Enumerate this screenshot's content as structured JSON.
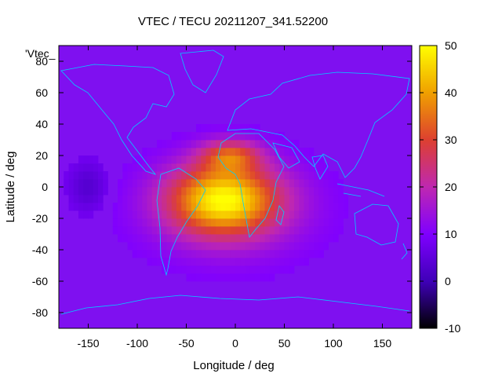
{
  "chart_data": {
    "type": "heatmap",
    "title": "VTEC / TECU 20211207_341.52200",
    "xlabel": "Longitude / deg",
    "ylabel": "Latitude / deg",
    "legend_label": "'Vtec_",
    "xlim": [
      -180,
      180
    ],
    "ylim": [
      -90,
      90
    ],
    "x_ticks": [
      -150,
      -100,
      -50,
      0,
      50,
      100,
      150
    ],
    "y_ticks": [
      -80,
      -60,
      -40,
      -20,
      0,
      20,
      40,
      60,
      80
    ],
    "colorbar": {
      "range": [
        -10,
        50
      ],
      "ticks": [
        -10,
        0,
        10,
        20,
        30,
        40,
        50
      ],
      "colormap": [
        "#000000",
        "#3f00b8",
        "#7f00ff",
        "#bf28b0",
        "#dd4030",
        "#f0a000",
        "#ffff00"
      ]
    },
    "background_vtec": 9,
    "features": [
      {
        "name": "equatorial-anomaly-south",
        "lon": -12,
        "lat": -8,
        "peak_vtec": 45
      },
      {
        "name": "equatorial-anomaly-north",
        "lon": -5,
        "lat": 20,
        "peak_vtec": 40
      },
      {
        "name": "pacific-depletion",
        "lon": -150,
        "lat": 0,
        "peak_vtec": 3
      }
    ],
    "contour_color": "#00d0ff"
  }
}
